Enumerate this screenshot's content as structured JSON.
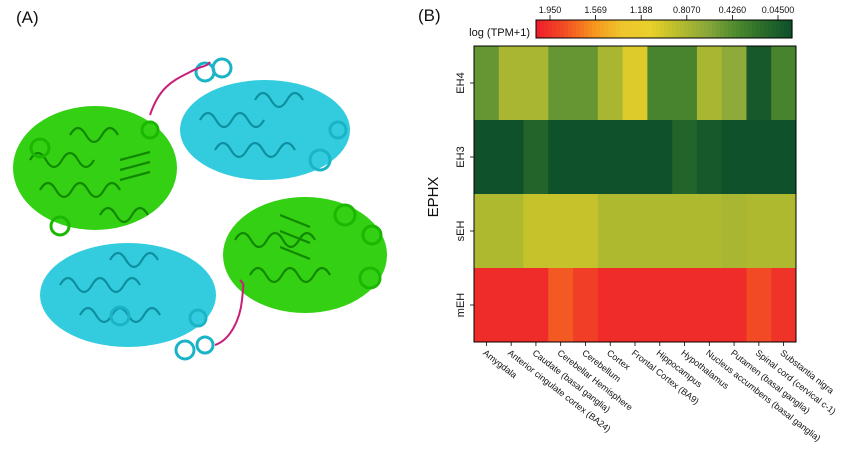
{
  "panel_a": {
    "label": "(A)",
    "colors": {
      "domain_green": "#22cc00",
      "domain_cyan": "#22c8dc",
      "linker": "#c8207a"
    }
  },
  "panel_b": {
    "label": "(B)",
    "legend": {
      "title": "log (TPM+1)",
      "ticks": [
        "1.950",
        "1.569",
        "1.188",
        "0.8070",
        "0.4260",
        "0.04500"
      ],
      "palette": [
        "#ee1b2b",
        "#f24d24",
        "#f7931e",
        "#eec52d",
        "#e9d02a",
        "#b8bd2d",
        "#8aa83a",
        "#4f8b2e",
        "#2a6b2a",
        "#0d4f2b"
      ]
    },
    "chart_data": {
      "type": "heatmap",
      "ylabel": "EPHX",
      "rows": [
        "EH4",
        "EH3",
        "sEH",
        "mEH"
      ],
      "columns": [
        "Amygdala",
        "Anterior cingulate cortex (BA24)",
        "Caudate (basal ganglia)",
        "Cerebellar Hemisphere",
        "Cerebellum",
        "Cortex",
        "Frontal Cortex (BA9)",
        "Hippocampus",
        "Hypothalamus",
        "Nucleus accumbens (basal ganglia)",
        "Putamen (basal ganglia)",
        "Spinal cord (cervical c-1)",
        "Substantia nigra"
      ],
      "vmin": 0.045,
      "vmax": 1.95,
      "scale_direction": "high values red, low values dark green",
      "values": [
        [
          0.55,
          0.82,
          0.82,
          0.55,
          0.55,
          0.82,
          1.05,
          0.42,
          0.42,
          0.82,
          0.7,
          0.12,
          0.42
        ],
        [
          0.06,
          0.06,
          0.2,
          0.06,
          0.06,
          0.06,
          0.06,
          0.06,
          0.2,
          0.12,
          0.06,
          0.06,
          0.06
        ],
        [
          0.85,
          0.85,
          0.95,
          0.95,
          0.95,
          0.85,
          0.85,
          0.85,
          0.85,
          0.85,
          0.82,
          0.85,
          0.85
        ],
        [
          1.88,
          1.88,
          1.88,
          1.7,
          1.8,
          1.88,
          1.88,
          1.88,
          1.88,
          1.88,
          1.88,
          1.75,
          1.85
        ]
      ]
    }
  }
}
